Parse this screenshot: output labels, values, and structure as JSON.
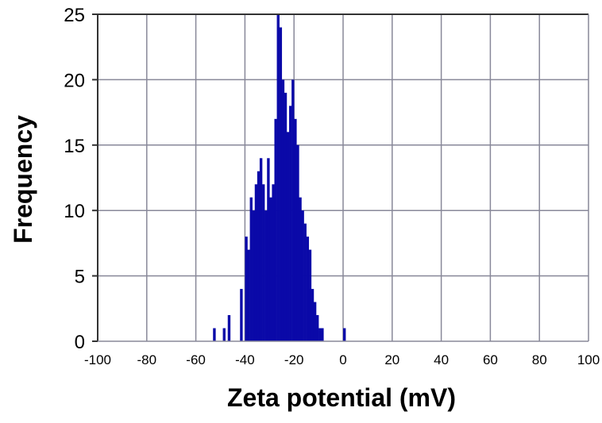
{
  "chart_data": {
    "type": "bar",
    "title": "",
    "xlabel": "Zeta potential (mV)",
    "ylabel": "Frequency",
    "xlim": [
      -100,
      100
    ],
    "ylim": [
      0,
      25
    ],
    "grid": true,
    "x_ticks": [
      "-100",
      "-80",
      "-60",
      "-40",
      "-20",
      "0",
      "20",
      "40",
      "60",
      "80",
      "100"
    ],
    "y_ticks": [
      "0",
      "5",
      "10",
      "15",
      "20",
      "25"
    ],
    "bin_width": 1,
    "x": [
      -53,
      -49,
      -47,
      -42,
      -40,
      -39,
      -38,
      -37,
      -36,
      -35,
      -34,
      -33,
      -32,
      -31,
      -30,
      -29,
      -28,
      -27,
      -26,
      -25,
      -24,
      -23,
      -22,
      -21,
      -20,
      -19,
      -18,
      -17,
      -16,
      -15,
      -14,
      -13,
      -12,
      -11,
      -10,
      -9,
      -8,
      -7,
      -6,
      0
    ],
    "values": [
      1,
      1,
      2,
      4,
      8,
      7,
      11,
      10,
      12,
      13,
      14,
      12,
      10,
      14,
      11,
      12,
      17,
      25,
      24,
      20,
      19,
      16,
      18,
      20,
      17,
      15,
      11,
      10,
      9,
      8,
      7,
      4,
      3,
      2,
      1,
      1,
      0,
      0,
      0,
      1
    ],
    "bar_color": "#0a09a8",
    "grid_color": "#888899"
  }
}
